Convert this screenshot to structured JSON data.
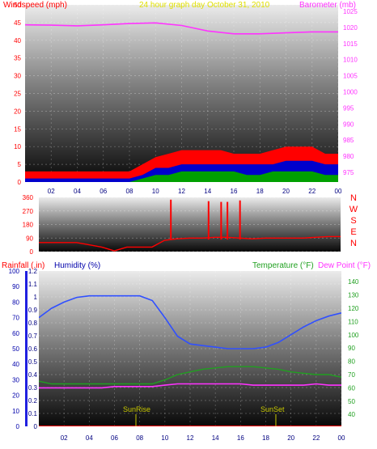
{
  "colors": {
    "wind_avg": "#00a000",
    "wind_gust": "#ff0000",
    "wind_mid": "#0000cc",
    "barometer": "#ff33ff",
    "direction": "#ff0000",
    "humidity": "#3050ff",
    "temperature": "#20a020",
    "dewpoint": "#ff33ff",
    "rainfall": "#ff0000",
    "sun": "#c8c800",
    "title": "#e0e000"
  },
  "chart_data": [
    {
      "type": "area",
      "title": "24 hour graph day   October 31, 2010",
      "ylabel_left": "Windspeed (mph)",
      "ylabel_right": "Barometer (mb)",
      "x_ticks": [
        "02",
        "04",
        "06",
        "08",
        "10",
        "12",
        "14",
        "16",
        "18",
        "20",
        "22",
        "00"
      ],
      "y_left_ticks": [
        "0",
        "5",
        "10",
        "15",
        "20",
        "25",
        "30",
        "35",
        "40",
        "45",
        "50"
      ],
      "y_right_ticks": [
        "975",
        "980",
        "985",
        "990",
        "995",
        "1000",
        "1005",
        "1010",
        "1015",
        "1020",
        "1025"
      ],
      "ylim_left": [
        0,
        50
      ],
      "ylim_right": [
        972,
        1027
      ],
      "series": [
        {
          "key": "gust",
          "x": [
            0,
            1,
            2,
            3,
            4,
            5,
            6,
            7,
            8,
            9,
            10,
            11,
            12,
            13,
            14,
            15,
            16,
            17,
            18,
            19,
            20,
            21,
            22,
            23,
            24
          ],
          "values": [
            3,
            3,
            3,
            3,
            3,
            3,
            3,
            3,
            3,
            5,
            7,
            8,
            9,
            9,
            9,
            9,
            8,
            8,
            8,
            9,
            10,
            10,
            10,
            8,
            8
          ]
        },
        {
          "key": "mid",
          "x": [
            0,
            1,
            2,
            3,
            4,
            5,
            6,
            7,
            8,
            9,
            10,
            11,
            12,
            13,
            14,
            15,
            16,
            17,
            18,
            19,
            20,
            21,
            22,
            23,
            24
          ],
          "values": [
            1,
            1,
            1,
            1,
            1,
            1,
            1,
            1,
            1,
            2,
            4,
            4,
            5,
            5,
            5,
            5,
            5,
            5,
            5,
            5,
            6,
            6,
            6,
            5,
            5
          ]
        },
        {
          "key": "avg",
          "x": [
            0,
            1,
            2,
            3,
            4,
            5,
            6,
            7,
            8,
            9,
            10,
            11,
            12,
            13,
            14,
            15,
            16,
            17,
            18,
            19,
            20,
            21,
            22,
            23,
            24
          ],
          "values": [
            0,
            0,
            0,
            0,
            0,
            0,
            0,
            0,
            0,
            1,
            2,
            2,
            3,
            3,
            3,
            3,
            3,
            2,
            2,
            3,
            3,
            3,
            3,
            2,
            2
          ]
        },
        {
          "key": "barometer",
          "axis": "right",
          "x": [
            0,
            2,
            4,
            6,
            8,
            10,
            12,
            14,
            16,
            18,
            20,
            22,
            24
          ],
          "values": [
            1020.8,
            1020.7,
            1020.5,
            1020.8,
            1021.2,
            1021.4,
            1020.6,
            1018.9,
            1018.0,
            1018.0,
            1018.3,
            1018.6,
            1018.6
          ]
        }
      ]
    },
    {
      "type": "line",
      "y_ticks": [
        "0",
        "90",
        "180",
        "270",
        "360"
      ],
      "compass_labels": [
        "N",
        "W",
        "S",
        "E",
        "N"
      ],
      "ylim": [
        0,
        360
      ],
      "series": [
        {
          "key": "direction",
          "x": [
            0,
            1,
            2,
            3,
            4,
            5,
            6,
            7,
            8,
            9,
            10,
            11,
            12,
            13,
            14,
            15,
            16,
            17,
            18,
            19,
            20,
            21,
            22,
            23,
            24
          ],
          "values": [
            60,
            60,
            60,
            60,
            45,
            30,
            5,
            30,
            30,
            30,
            75,
            85,
            90,
            90,
            95,
            95,
            90,
            85,
            90,
            90,
            90,
            90,
            95,
            100,
            100
          ]
        },
        {
          "key": "direction_spikes",
          "x": [
            10.5,
            13.5,
            14.5,
            15.0,
            16.0
          ],
          "values": [
            345,
            335,
            330,
            330,
            340
          ]
        }
      ]
    },
    {
      "type": "line",
      "ylabel_left": "Rainfall (.in)",
      "ylabel_humidity": "Humidity (%)",
      "ylabel_right": "Temperature (°F)",
      "ylabel_right2": "Dew Point (°F)",
      "x_ticks": [
        "02",
        "04",
        "06",
        "08",
        "10",
        "12",
        "14",
        "16",
        "18",
        "20",
        "22",
        "00"
      ],
      "y_left_ticks": [
        "0",
        "10",
        "20",
        "30",
        "40",
        "50",
        "60",
        "70",
        "80",
        "90",
        "100"
      ],
      "y_mid_ticks": [
        "0",
        "0.1",
        "0.2",
        "0.3",
        "0.4",
        "0.5",
        "0.6",
        "0.7",
        "0.8",
        "0.9",
        "1",
        "1.1",
        "1.2"
      ],
      "y_right_ticks": [
        "40",
        "50",
        "60",
        "70",
        "80",
        "90",
        "100",
        "110",
        "120",
        "130",
        "140"
      ],
      "ylim_humidity": [
        0,
        100
      ],
      "ylim_temperature": [
        31,
        148
      ],
      "annotations": [
        "SunRise",
        "SunSet"
      ],
      "series": [
        {
          "key": "humidity",
          "x": [
            0,
            1,
            2,
            3,
            4,
            5,
            6,
            7,
            8,
            9,
            10,
            11,
            12,
            13,
            14,
            15,
            16,
            17,
            18,
            19,
            20,
            21,
            22,
            23,
            24
          ],
          "values": [
            70,
            76,
            80,
            83,
            84,
            84,
            84,
            84,
            84,
            81,
            70,
            58,
            53,
            52,
            51,
            50,
            50,
            50,
            51,
            54,
            59,
            64,
            68,
            71,
            73
          ]
        },
        {
          "key": "temperature",
          "x": [
            0,
            1,
            2,
            3,
            4,
            5,
            6,
            7,
            8,
            9,
            10,
            11,
            12,
            13,
            14,
            15,
            16,
            17,
            18,
            19,
            20,
            21,
            22,
            23,
            24
          ],
          "values": [
            65,
            63,
            63,
            63,
            63,
            63,
            63,
            63,
            63,
            63,
            66,
            70,
            72,
            74,
            75,
            76,
            76,
            76,
            75,
            74,
            72,
            71,
            70,
            70,
            68
          ]
        },
        {
          "key": "dewpoint",
          "x": [
            0,
            1,
            2,
            3,
            4,
            5,
            6,
            7,
            8,
            9,
            10,
            11,
            12,
            13,
            14,
            15,
            16,
            17,
            18,
            19,
            20,
            21,
            22,
            23,
            24
          ],
          "values": [
            60,
            60,
            60,
            60,
            60,
            60,
            61,
            61,
            61,
            61,
            62,
            63,
            63,
            63,
            63,
            63,
            63,
            62,
            62,
            62,
            62,
            62,
            63,
            62,
            62
          ]
        },
        {
          "key": "rainfall",
          "x": [
            0,
            24
          ],
          "values": [
            0,
            0
          ]
        },
        {
          "key": "sunrise",
          "x": [
            7.7
          ]
        },
        {
          "key": "sunset",
          "x": [
            18.8
          ]
        }
      ]
    }
  ]
}
